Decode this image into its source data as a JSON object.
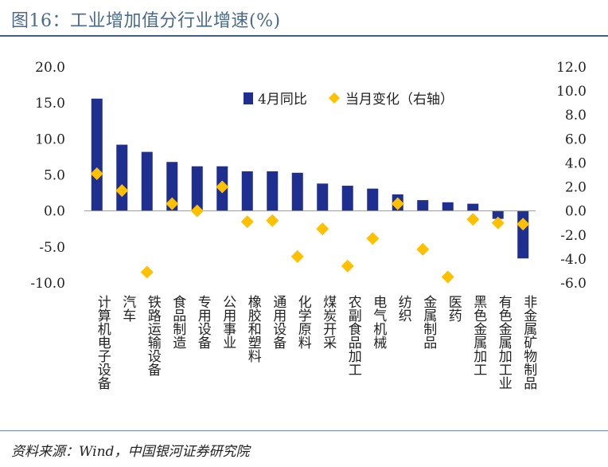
{
  "figure": {
    "title": "图16：工业增加值分行业增速(%)",
    "source": "资料来源：Wind，中国银河证券研究院"
  },
  "colors": {
    "bar": "#1f2f8f",
    "marker": "#ffc000",
    "title": "#4a6a8c",
    "axis": "#888888"
  },
  "chart_data": {
    "type": "bar",
    "title": "图16：工业增加值分行业增速(%)",
    "categories": [
      "计算机电子设备",
      "汽车",
      "铁路运输设备",
      "食品制造",
      "专用设备",
      "公用事业",
      "橡胶和塑料",
      "通用设备",
      "化学原料",
      "煤炭开采",
      "农副食品加工",
      "电气机械",
      "纺织",
      "金属制品",
      "医药",
      "黑色金属加工",
      "有色金属加工业",
      "非金属矿物制品"
    ],
    "series": [
      {
        "name": "4月同比",
        "type": "bar",
        "axis": "left",
        "values": [
          15.6,
          9.2,
          8.2,
          6.8,
          6.2,
          6.2,
          5.5,
          5.5,
          5.3,
          3.8,
          3.5,
          3.1,
          2.3,
          1.5,
          1.2,
          1.0,
          -1.1,
          -6.6
        ]
      },
      {
        "name": "当月变化（右轴）",
        "type": "scatter",
        "marker": "diamond",
        "axis": "right",
        "values": [
          3.1,
          1.7,
          -5.1,
          0.6,
          0.0,
          2.0,
          -0.9,
          -0.8,
          -3.8,
          -1.5,
          -4.6,
          -2.3,
          0.6,
          -3.2,
          -5.5,
          -0.7,
          -1.0,
          -1.1
        ]
      }
    ],
    "yaxis_left": {
      "min": -10,
      "max": 20,
      "ticks": [
        "-10.0",
        "-5.0",
        "0.0",
        "5.0",
        "10.0",
        "15.0",
        "20.0"
      ]
    },
    "yaxis_right": {
      "min": -6,
      "max": 12,
      "ticks": [
        "-6.0",
        "-4.0",
        "-2.0",
        "0.0",
        "2.0",
        "4.0",
        "6.0",
        "8.0",
        "10.0",
        "12.0"
      ]
    },
    "legend": "top-right",
    "grid": false
  }
}
